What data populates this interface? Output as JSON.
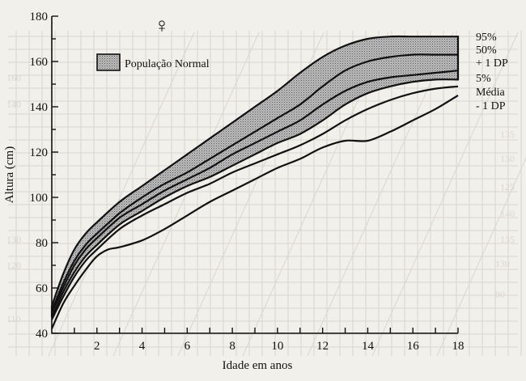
{
  "chart_data": {
    "type": "line",
    "title": "",
    "symbol": "♀",
    "xlabel": "Idade em anos",
    "ylabel": "Altura (cm)",
    "xlim": [
      0,
      18
    ],
    "ylim": [
      40,
      180
    ],
    "x_ticks": [
      2,
      4,
      6,
      8,
      10,
      12,
      14,
      16,
      18
    ],
    "y_ticks": [
      40,
      60,
      80,
      100,
      120,
      140,
      160,
      180
    ],
    "legend": {
      "label": "População Normal",
      "position": "top-left"
    },
    "band": {
      "name": "População Normal",
      "x": [
        0,
        0.5,
        1,
        1.5,
        2,
        3,
        4,
        5,
        6,
        7,
        8,
        9,
        10,
        11,
        12,
        13,
        14,
        15,
        16,
        17,
        18
      ],
      "upper": [
        52,
        66,
        77,
        84,
        89,
        98,
        105,
        112,
        119,
        126,
        133,
        140,
        147,
        155,
        162,
        167,
        170,
        171,
        171,
        171,
        171
      ],
      "lower": [
        47,
        58,
        67,
        74,
        79,
        88,
        94,
        100,
        105,
        109,
        114,
        119,
        124,
        128,
        134,
        141,
        146,
        149,
        151,
        152,
        152
      ]
    },
    "series": [
      {
        "name": "50%",
        "x": [
          0,
          0.5,
          1,
          1.5,
          2,
          3,
          4,
          5,
          6,
          7,
          8,
          9,
          10,
          11,
          12,
          13,
          14,
          15,
          16,
          17,
          18
        ],
        "values": [
          50,
          62,
          72,
          79,
          84,
          93,
          100,
          106,
          111,
          117,
          123,
          129,
          135,
          141,
          149,
          156,
          160,
          162,
          163,
          163,
          163
        ]
      },
      {
        "name": "+ 1 DP",
        "x": [
          0,
          0.5,
          1,
          1.5,
          2,
          3,
          4,
          5,
          6,
          7,
          8,
          9,
          10,
          11,
          12,
          13,
          14,
          15,
          16,
          17,
          18
        ],
        "values": [
          49,
          60,
          70,
          77,
          82,
          91,
          97,
          103,
          108,
          113,
          119,
          124,
          129,
          134,
          141,
          147,
          151,
          153,
          154,
          155,
          156
        ]
      },
      {
        "name": "Média",
        "x": [
          0,
          0.5,
          1,
          1.5,
          2,
          3,
          4,
          5,
          6,
          7,
          8,
          9,
          10,
          11,
          12,
          13,
          14,
          15,
          16,
          17,
          18
        ],
        "values": [
          46,
          56,
          65,
          72,
          77,
          86,
          92,
          97,
          102,
          106,
          111,
          115,
          119,
          123,
          128,
          134,
          139,
          143,
          146,
          148,
          149
        ]
      },
      {
        "name": "- 1 DP",
        "x": [
          0,
          0.5,
          1,
          1.5,
          2,
          2.5,
          3,
          4,
          5,
          6,
          7,
          8,
          9,
          10,
          11,
          12,
          13,
          14,
          15,
          16,
          17,
          18
        ],
        "values": [
          42,
          53,
          61,
          68,
          74,
          77,
          78,
          81,
          86,
          92,
          98,
          103,
          108,
          113,
          117,
          122,
          125,
          125,
          129,
          134,
          139,
          145
        ]
      }
    ],
    "right_labels": [
      "95%",
      "50%",
      "+ 1 DP",
      "5%",
      "Média",
      "- 1 DP"
    ],
    "background_axis_labels": [
      "160",
      "140",
      "130",
      "120",
      "110",
      "90",
      "135",
      "130",
      "125",
      "140",
      "135",
      "130"
    ]
  }
}
